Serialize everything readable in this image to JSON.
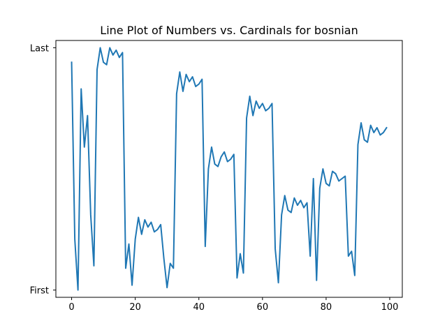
{
  "chart_data": {
    "type": "line",
    "title": "Line Plot of Numbers vs. Cardinals for bosnian",
    "xlabel": "",
    "ylabel": "",
    "xlim": [
      -4.95,
      103.95
    ],
    "ylim": [
      -0.03,
      1.03
    ],
    "x_ticks": [
      0,
      20,
      40,
      60,
      80,
      100
    ],
    "y_ticks": [
      {
        "value": 0,
        "label": "First"
      },
      {
        "value": 1,
        "label": "Last"
      }
    ],
    "line_color": "#1f77b4",
    "grid": false,
    "series": [
      {
        "x": [
          0,
          1,
          2,
          3,
          4,
          5,
          6,
          7,
          8,
          9,
          10,
          11,
          12,
          13,
          14,
          15,
          16,
          17,
          18,
          19,
          20,
          21,
          22,
          23,
          24,
          25,
          26,
          27,
          28,
          29,
          30,
          31,
          32,
          33,
          34,
          35,
          36,
          37,
          38,
          39,
          40,
          41,
          42,
          43,
          44,
          45,
          46,
          47,
          48,
          49,
          50,
          51,
          52,
          53,
          54,
          55,
          56,
          57,
          58,
          59,
          60,
          61,
          62,
          63,
          64,
          65,
          66,
          67,
          68,
          69,
          70,
          71,
          72,
          73,
          74,
          75,
          76,
          77,
          78,
          79,
          80,
          81,
          82,
          83,
          84,
          85,
          86,
          87,
          88,
          89,
          90,
          91,
          92,
          93,
          94,
          95,
          96,
          97,
          98,
          99
        ],
        "values": [
          0.94,
          0.21,
          0.0,
          0.83,
          0.59,
          0.72,
          0.31,
          0.1,
          0.91,
          1.0,
          0.94,
          0.93,
          1.0,
          0.97,
          0.99,
          0.96,
          0.98,
          0.09,
          0.19,
          0.02,
          0.21,
          0.3,
          0.23,
          0.29,
          0.26,
          0.28,
          0.24,
          0.25,
          0.27,
          0.13,
          0.01,
          0.11,
          0.09,
          0.81,
          0.9,
          0.82,
          0.89,
          0.86,
          0.88,
          0.84,
          0.85,
          0.87,
          0.18,
          0.5,
          0.59,
          0.52,
          0.51,
          0.55,
          0.57,
          0.53,
          0.54,
          0.56,
          0.05,
          0.15,
          0.07,
          0.71,
          0.8,
          0.72,
          0.78,
          0.75,
          0.77,
          0.74,
          0.75,
          0.77,
          0.17,
          0.03,
          0.31,
          0.39,
          0.33,
          0.32,
          0.38,
          0.35,
          0.37,
          0.34,
          0.36,
          0.14,
          0.46,
          0.04,
          0.42,
          0.5,
          0.44,
          0.43,
          0.49,
          0.48,
          0.45,
          0.46,
          0.47,
          0.14,
          0.16,
          0.06,
          0.6,
          0.69,
          0.62,
          0.61,
          0.68,
          0.65,
          0.67,
          0.64,
          0.65,
          0.67
        ]
      }
    ]
  }
}
